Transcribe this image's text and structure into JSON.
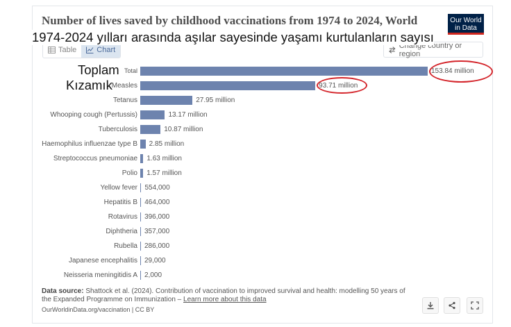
{
  "title": "Number of lives saved by childhood vaccinations from 1974 to 2024, World",
  "overlay_subtitle": "1974-2024 yılları arasında aşılar sayesinde yaşamı kurtulanların sayısı",
  "logo": {
    "line1": "Our World",
    "line2": "in Data"
  },
  "tabs": {
    "table": "Table",
    "chart": "Chart"
  },
  "change_country": "Change country or region",
  "overlay_labels": {
    "total": "Toplam",
    "measles": "Kızamık"
  },
  "chart_data": {
    "type": "bar",
    "orientation": "horizontal",
    "unit": "lives saved",
    "categories": [
      "Total",
      "Measles",
      "Tetanus",
      "Whooping cough (Pertussis)",
      "Tuberculosis",
      "Haemophilus influenzae type B",
      "Streptococcus pneumoniae",
      "Polio",
      "Yellow fever",
      "Hepatitis B",
      "Rotavirus",
      "Diphtheria",
      "Rubella",
      "Japanese encephalitis",
      "Neisseria meningitidis A"
    ],
    "values": [
      153840000,
      93710000,
      27950000,
      13170000,
      10870000,
      2850000,
      1630000,
      1570000,
      554000,
      464000,
      396000,
      357000,
      286000,
      29000,
      2000
    ],
    "value_labels": [
      "153.84 million",
      "93.71 million",
      "27.95 million",
      "13.17 million",
      "10.87 million",
      "2.85 million",
      "1.63 million",
      "1.57 million",
      "554,000",
      "464,000",
      "396,000",
      "357,000",
      "286,000",
      "29,000",
      "2,000"
    ],
    "xlim": [
      0,
      153840000
    ],
    "highlighted": [
      "Total",
      "Measles"
    ],
    "bar_color": "#6d83ae",
    "highlight_color": "#d4252b"
  },
  "footer": {
    "source_label": "Data source:",
    "source_text": "Shattock et al. (2024). Contribution of vaccination to improved survival and health: modelling 50 years of the Expanded Programme on Immunization",
    "separator": " – ",
    "learn_more": "Learn more about this data",
    "attribution": "OurWorldinData.org/vaccination | CC BY"
  }
}
